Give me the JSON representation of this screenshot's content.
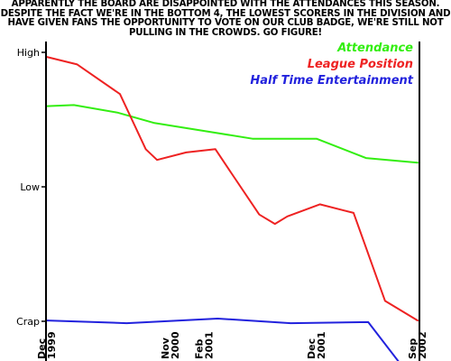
{
  "caption": "Apparently the board are disappointed with the attendances this season. Despite the fact we're in the bottom 4, the lowest scorers in the division and have given fans the opportunity to vote on our club badge, we're still not pulling in the crowds. Go figure!",
  "chart_data": {
    "type": "line",
    "title": "",
    "xlabel": "",
    "ylabel": "",
    "x_ticks": [
      {
        "label": [
          "Dec",
          "1999"
        ],
        "pos": 0
      },
      {
        "label": [
          "Nov",
          "2000"
        ],
        "pos": 11
      },
      {
        "label": [
          "Feb",
          "2001"
        ],
        "pos": 14
      },
      {
        "label": [
          "Dec",
          "2001"
        ],
        "pos": 24
      },
      {
        "label": [
          "Sep",
          "2002"
        ],
        "pos": 33
      }
    ],
    "x_range": [
      0,
      33
    ],
    "y_ticks": [
      {
        "label": "High",
        "value": 100
      },
      {
        "label": "Low",
        "value": 50
      },
      {
        "label": "Crap",
        "value": 0
      }
    ],
    "ylim": [
      0,
      100
    ],
    "grid": false,
    "legend_position": "top-right",
    "series": [
      {
        "name": "Attendance",
        "color": "#33ee11",
        "points": [
          [
            0,
            80
          ],
          [
            2.4,
            80.4
          ],
          [
            6.3,
            77.6
          ],
          [
            9.5,
            73.8
          ],
          [
            12,
            72.1
          ],
          [
            14.7,
            70.3
          ],
          [
            18.3,
            67.9
          ],
          [
            24,
            67.9
          ],
          [
            28.4,
            60.7
          ],
          [
            33,
            59
          ]
        ]
      },
      {
        "name": "League Position",
        "color": "#ee2222",
        "points": [
          [
            0,
            98.3
          ],
          [
            2.7,
            95.5
          ],
          [
            6.5,
            84.5
          ],
          [
            8.8,
            64
          ],
          [
            9.8,
            60
          ],
          [
            12.4,
            62.8
          ],
          [
            15,
            64
          ],
          [
            16.4,
            55.2
          ],
          [
            18.9,
            39.7
          ],
          [
            20.3,
            36.2
          ],
          [
            21.4,
            39
          ],
          [
            24.3,
            43.5
          ],
          [
            27.3,
            40.3
          ],
          [
            30.1,
            7.6
          ],
          [
            33,
            0.3
          ]
        ]
      },
      {
        "name": "Half Time Entertainment",
        "color": "#2222dd",
        "points": [
          [
            0,
            0.3
          ],
          [
            7.1,
            -0.7
          ],
          [
            15.2,
            1
          ],
          [
            21.7,
            -0.7
          ],
          [
            28.6,
            -0.3
          ],
          [
            31.4,
            -15.5
          ]
        ]
      }
    ]
  }
}
